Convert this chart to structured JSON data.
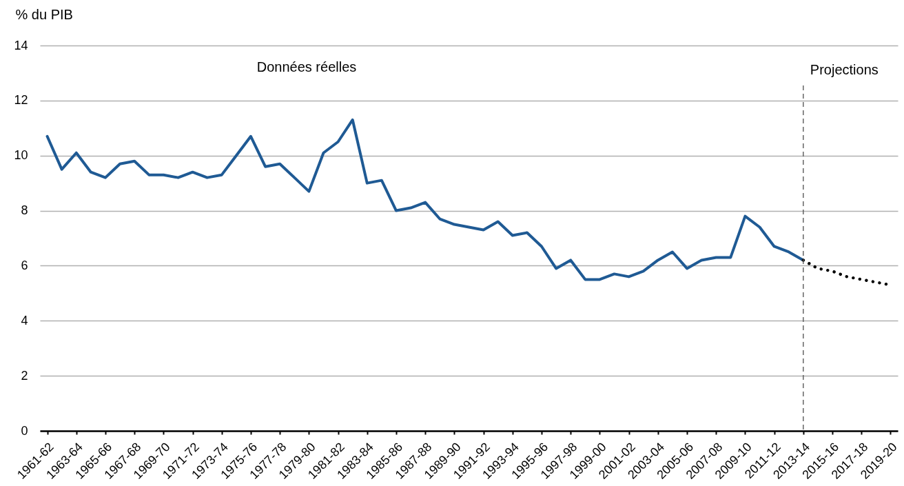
{
  "chart_data": {
    "type": "line",
    "ylabel": "% du PIB",
    "annotations": [
      "Données réelles"
    ],
    "categories": [
      "1961-62",
      null,
      "1963-64",
      null,
      "1965-66",
      null,
      "1967-68",
      null,
      "1969-70",
      null,
      "1971-72",
      null,
      "1973-74",
      null,
      "1975-76",
      null,
      "1977-78",
      null,
      "1979-80",
      null,
      "1981-82",
      null,
      "1983-84",
      null,
      "1985-86",
      null,
      "1987-88",
      null,
      "1989-90",
      null,
      "1991-92",
      null,
      "1993-94",
      null,
      "1995-96",
      null,
      "1997-98",
      null,
      "1999-00",
      null,
      "2001-02",
      null,
      "2003-04",
      null,
      "2005-06",
      null,
      "2007-08",
      null,
      "2009-10",
      null,
      "2011-12",
      null,
      "2013-14",
      null,
      "2015-16",
      null,
      "2017-18",
      null,
      "2019-20"
    ],
    "series": [
      {
        "color": "#1f5a94",
        "line_style": "solid",
        "values": [
          10.7,
          9.5,
          10.1,
          9.4,
          9.2,
          9.7,
          9.8,
          9.3,
          9.3,
          9.2,
          9.4,
          9.2,
          9.3,
          10.0,
          10.7,
          9.6,
          9.7,
          9.2,
          8.7,
          10.1,
          10.5,
          11.3,
          9.0,
          9.1,
          8.0,
          8.1,
          8.3,
          7.7,
          7.5,
          7.4,
          7.3,
          7.6,
          7.1,
          7.2,
          6.7,
          5.9,
          6.2,
          5.5,
          5.5,
          5.7,
          5.6,
          5.8,
          6.2,
          6.5,
          5.9,
          6.2,
          6.3,
          6.3,
          7.8,
          7.4,
          6.7,
          6.5,
          6.2,
          null,
          null,
          null,
          null,
          null,
          null
        ]
      },
      {
        "color": "#000000",
        "line_style": "dotted",
        "values": [
          null,
          null,
          null,
          null,
          null,
          null,
          null,
          null,
          null,
          null,
          null,
          null,
          null,
          null,
          null,
          null,
          null,
          null,
          null,
          null,
          null,
          null,
          null,
          null,
          null,
          null,
          null,
          null,
          null,
          null,
          null,
          null,
          null,
          null,
          null,
          null,
          null,
          null,
          null,
          null,
          null,
          null,
          null,
          null,
          null,
          null,
          null,
          null,
          null,
          null,
          null,
          null,
          6.2,
          5.9,
          5.8,
          5.6,
          5.5,
          5.4,
          5.3
        ]
      }
    ],
    "ylim": [
      0,
      14
    ],
    "yticks": [
      0,
      2,
      4,
      6,
      8,
      10,
      12,
      14
    ],
    "grid": "y",
    "ref_lines": [
      {
        "axis": "x",
        "value": "2013-14",
        "label": "Projections",
        "color": "#595959",
        "line_style": "dashed"
      }
    ]
  }
}
